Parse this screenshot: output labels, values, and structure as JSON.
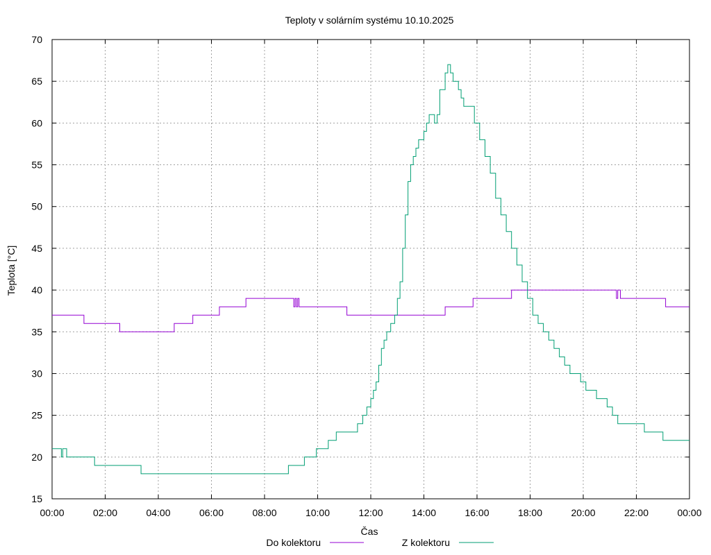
{
  "chart_data": {
    "type": "line",
    "title": "Teploty v solárním systému 10.10.2025",
    "xlabel": "Čas",
    "ylabel": "Teplota [°C]",
    "xlim": [
      0,
      24
    ],
    "ylim": [
      15,
      70
    ],
    "grid": true,
    "legend_position": "bottom-center",
    "x_ticks": [
      {
        "value": 0,
        "label": "00:00"
      },
      {
        "value": 2,
        "label": "02:00"
      },
      {
        "value": 4,
        "label": "04:00"
      },
      {
        "value": 6,
        "label": "06:00"
      },
      {
        "value": 8,
        "label": "08:00"
      },
      {
        "value": 10,
        "label": "10:00"
      },
      {
        "value": 12,
        "label": "12:00"
      },
      {
        "value": 14,
        "label": "14:00"
      },
      {
        "value": 16,
        "label": "16:00"
      },
      {
        "value": 18,
        "label": "18:00"
      },
      {
        "value": 20,
        "label": "20:00"
      },
      {
        "value": 22,
        "label": "22:00"
      },
      {
        "value": 24,
        "label": "00:00"
      }
    ],
    "y_ticks": [
      {
        "value": 15,
        "label": "15"
      },
      {
        "value": 20,
        "label": "20"
      },
      {
        "value": 25,
        "label": "25"
      },
      {
        "value": 30,
        "label": "30"
      },
      {
        "value": 35,
        "label": "35"
      },
      {
        "value": 40,
        "label": "40"
      },
      {
        "value": 45,
        "label": "45"
      },
      {
        "value": 50,
        "label": "50"
      },
      {
        "value": 55,
        "label": "55"
      },
      {
        "value": 60,
        "label": "60"
      },
      {
        "value": 65,
        "label": "65"
      },
      {
        "value": 70,
        "label": "70"
      }
    ],
    "series": [
      {
        "name": "Do kolektoru",
        "color": "#9400d3",
        "x": [
          0,
          1.2,
          2.55,
          4.6,
          5.3,
          6.3,
          7.3,
          9.1,
          9.15,
          9.2,
          9.25,
          9.3,
          9.35,
          11.1,
          14.8,
          15.85,
          17.3,
          21.25,
          21.3,
          21.4,
          21.45,
          23.1,
          24
        ],
        "y": [
          37,
          36,
          35,
          36,
          37,
          38,
          39,
          38,
          39,
          38,
          39,
          38,
          38,
          37,
          38,
          39,
          40,
          39,
          40,
          39,
          39,
          38,
          38
        ]
      },
      {
        "name": "Z kolektoru",
        "color": "#009e73",
        "x": [
          0,
          0.35,
          0.4,
          0.55,
          1.6,
          3.35,
          3.4,
          8.9,
          9.5,
          9.95,
          10.1,
          10.4,
          10.7,
          11.5,
          11.7,
          11.85,
          12.0,
          12.1,
          12.2,
          12.3,
          12.4,
          12.5,
          12.6,
          12.75,
          12.9,
          13.0,
          13.1,
          13.2,
          13.3,
          13.4,
          13.5,
          13.6,
          13.7,
          13.8,
          13.9,
          14.0,
          14.1,
          14.2,
          14.3,
          14.4,
          14.5,
          14.6,
          14.8,
          14.9,
          15.0,
          15.1,
          15.3,
          15.4,
          15.5,
          15.7,
          15.9,
          16.1,
          16.3,
          16.5,
          16.7,
          16.9,
          17.1,
          17.3,
          17.5,
          17.7,
          17.9,
          18.1,
          18.3,
          18.5,
          18.7,
          18.9,
          19.1,
          19.3,
          19.5,
          19.7,
          19.9,
          20.1,
          20.3,
          20.5,
          20.7,
          20.9,
          21.1,
          21.3,
          21.7,
          22.3,
          23.0,
          24
        ],
        "y": [
          21,
          20,
          21,
          20,
          19,
          18,
          18,
          19,
          20,
          21,
          21,
          22,
          23,
          24,
          25,
          26,
          27,
          28,
          29,
          31,
          33,
          34,
          35,
          36,
          37,
          39,
          41,
          45,
          49,
          53,
          55,
          56,
          57,
          58,
          58,
          59,
          60,
          61,
          61,
          60,
          61,
          64,
          66,
          67,
          66,
          65,
          64,
          63,
          62,
          62,
          60,
          58,
          56,
          54,
          51,
          49,
          47,
          45,
          43,
          41,
          39,
          37,
          36,
          35,
          34,
          33,
          32,
          31,
          30,
          30,
          29,
          28,
          28,
          27,
          27,
          26,
          25,
          24,
          24,
          23,
          22,
          22
        ]
      }
    ]
  }
}
